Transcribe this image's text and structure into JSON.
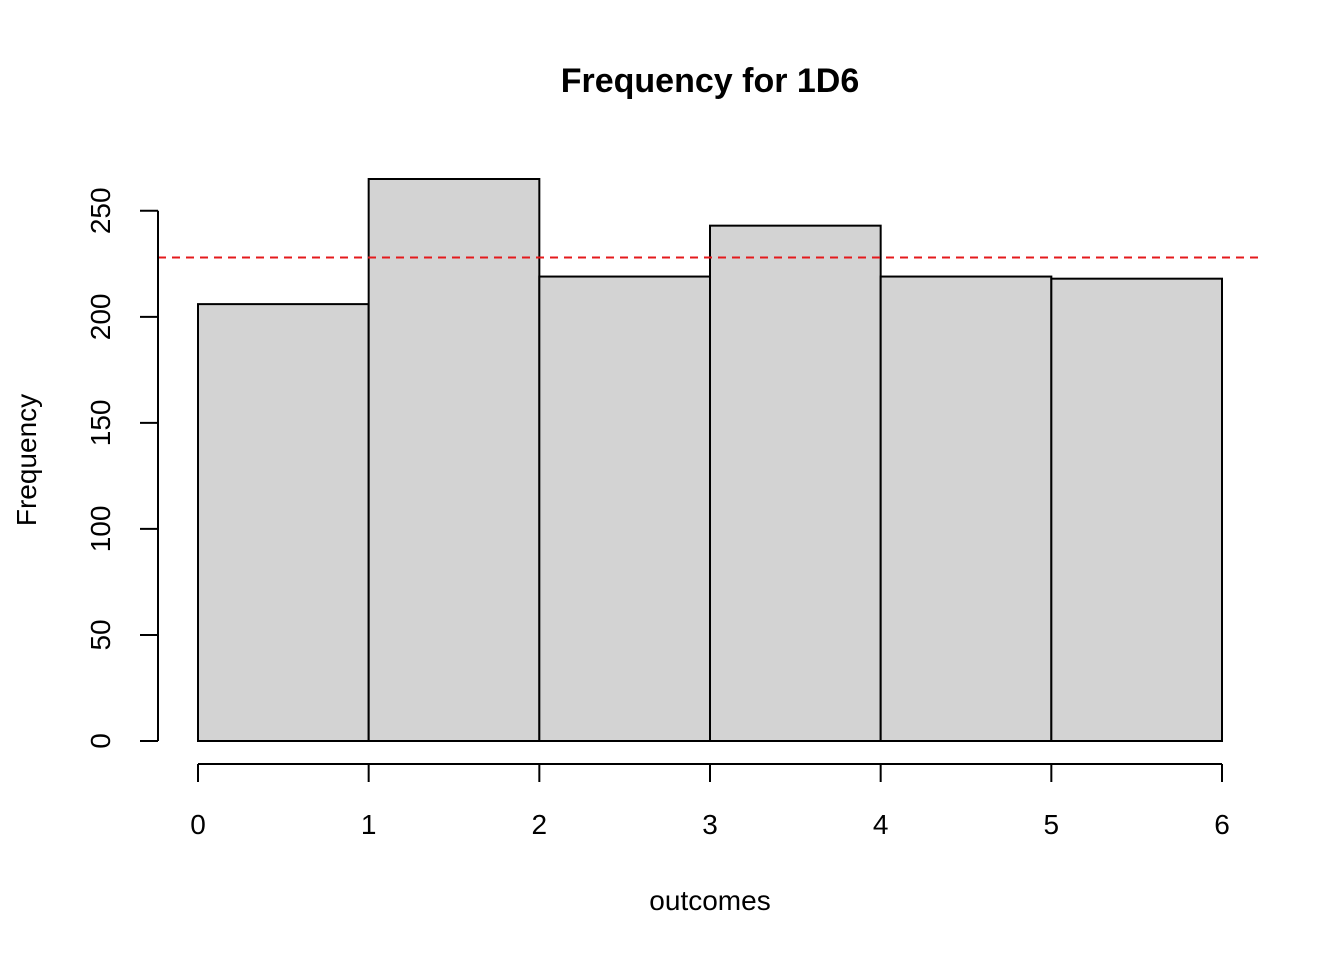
{
  "chart_data": {
    "type": "bar",
    "title": "Frequency for 1D6",
    "xlabel": "outcomes",
    "ylabel": "Frequency",
    "bins": [
      [
        0,
        1
      ],
      [
        1,
        2
      ],
      [
        2,
        3
      ],
      [
        3,
        4
      ],
      [
        4,
        5
      ],
      [
        5,
        6
      ]
    ],
    "values": [
      206,
      265,
      219,
      243,
      219,
      218
    ],
    "x_ticks": [
      0,
      1,
      2,
      3,
      4,
      5,
      6
    ],
    "y_ticks": [
      0,
      50,
      100,
      150,
      200,
      250
    ],
    "xlim": [
      0,
      6
    ],
    "ylim": [
      0,
      265
    ],
    "reference_line": {
      "y": 228,
      "style": "dashed",
      "color": "#e41a1c"
    },
    "bar_fill": "#d3d3d3",
    "bar_stroke": "#000000",
    "grid": false,
    "legend": "none"
  }
}
